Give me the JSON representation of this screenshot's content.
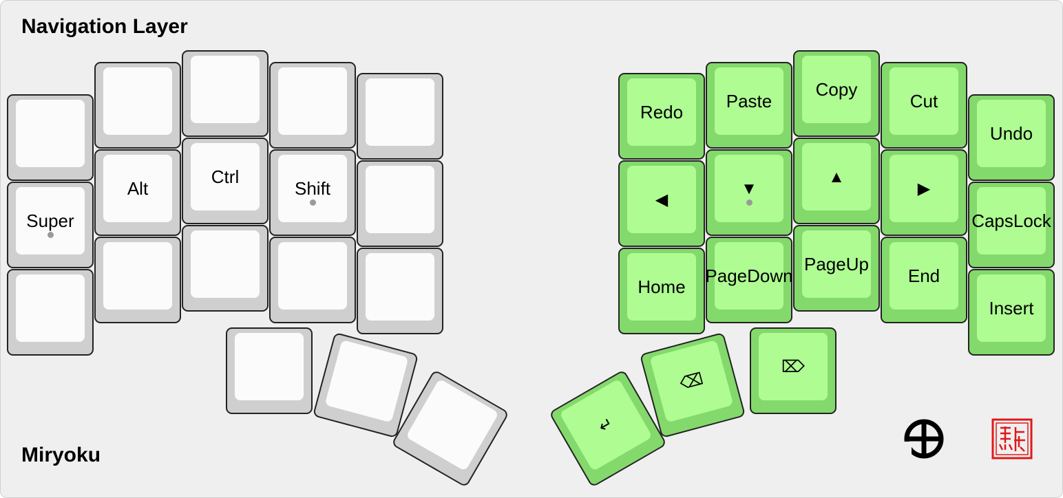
{
  "titles": {
    "layer": "Navigation Layer",
    "keyboard": "Miryoku"
  },
  "colors": {
    "nav_key_border": "#84d96c",
    "nav_key_top": "#aefc92",
    "plain_key_border": "#cfcfcf",
    "plain_key_top": "#fbfbfb",
    "background": "#efefef",
    "seal_red": "#e01818"
  },
  "left_hand": {
    "rows": [
      [
        "",
        "",
        "",
        "",
        ""
      ],
      [
        "Super",
        "Alt",
        "Ctrl",
        "Shift",
        ""
      ],
      [
        "",
        "",
        "",
        "",
        ""
      ]
    ],
    "home_markers": [
      "Super",
      "Shift"
    ],
    "thumbs": [
      "",
      "",
      ""
    ]
  },
  "right_hand": {
    "rows": [
      [
        "Redo",
        "Paste",
        "Copy",
        "Cut",
        "Undo"
      ],
      [
        "◀",
        "▼",
        "▲",
        "▶",
        "Caps Lock"
      ],
      [
        "Home",
        "Page Down",
        "Page Up",
        "End",
        "Insert"
      ]
    ],
    "home_markers": [
      "▼"
    ],
    "thumbs": [
      {
        "icon": "enter-icon",
        "glyph": "↵"
      },
      {
        "icon": "backspace-icon",
        "glyph": "⌫"
      },
      {
        "icon": "delete-icon",
        "glyph": "⌦"
      }
    ]
  },
  "logos": [
    "circle-glyph-logo",
    "red-seal-logo"
  ]
}
